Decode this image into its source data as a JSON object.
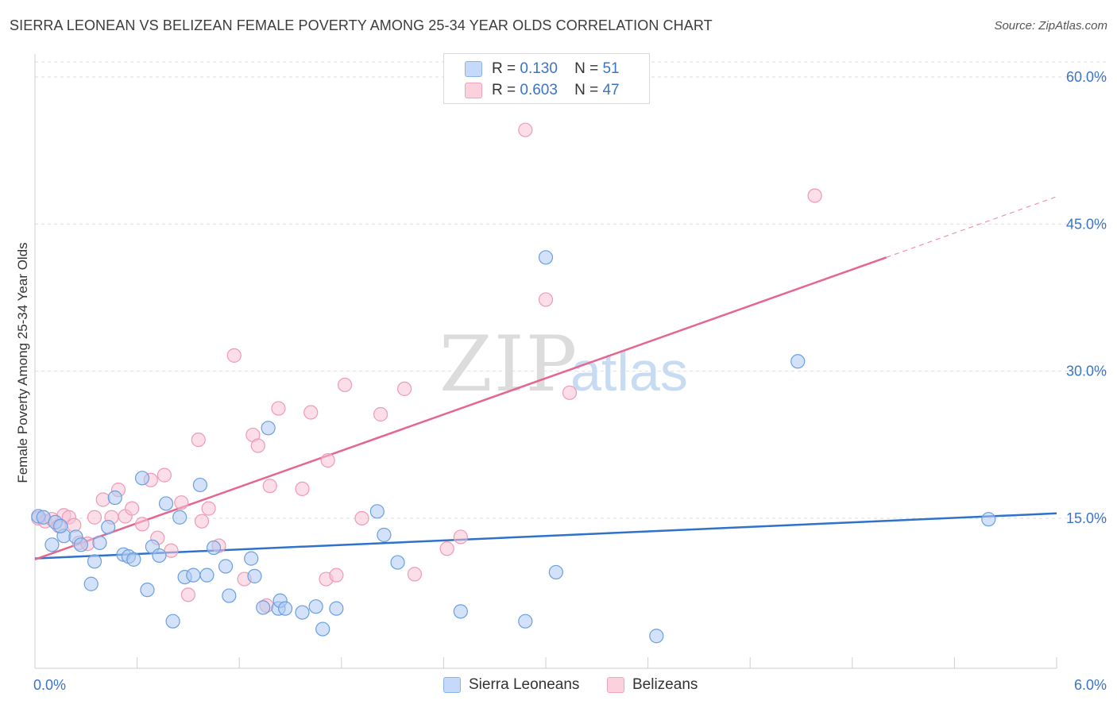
{
  "title": "SIERRA LEONEAN VS BELIZEAN FEMALE POVERTY AMONG 25-34 YEAR OLDS CORRELATION CHART",
  "source": "Source: ZipAtlas.com",
  "watermark": {
    "zip": "ZIP",
    "atlas": "atlas"
  },
  "legend": {
    "rows": [
      {
        "r_label": "R =",
        "r_value": "0.130",
        "n_label": "N =",
        "n_value": "51",
        "color": "#aecbf2"
      },
      {
        "r_label": "R =",
        "r_value": "0.603",
        "n_label": "N =",
        "n_value": "47",
        "color": "#f7b8cb"
      }
    ]
  },
  "bottom_legend": [
    {
      "label": "Sierra Leoneans",
      "color": "#aecbf2"
    },
    {
      "label": "Belizeans",
      "color": "#f7b8cb"
    }
  ],
  "chart_data": {
    "type": "scatter",
    "title": "SIERRA LEONEAN VS BELIZEAN FEMALE POVERTY AMONG 25-34 YEAR OLDS CORRELATION CHART",
    "xlabel": "",
    "ylabel": "Female Poverty Among 25-34 Year Olds",
    "xlim": [
      0,
      6
    ],
    "ylim": [
      0,
      62
    ],
    "x_tick_labels": [
      "0.0%",
      "6.0%"
    ],
    "y_ticks": [
      15,
      30,
      45,
      60
    ],
    "y_tick_labels": [
      "15.0%",
      "30.0%",
      "45.0%",
      "60.0%"
    ],
    "grid": true,
    "legend_position": "top-center",
    "colors": {
      "blue_fill": "#aecbf2",
      "blue_stroke": "#6a9fe0",
      "blue_line": "#2e72c9",
      "pink_fill": "#f7c3d3",
      "pink_stroke": "#ef9ab5",
      "pink_line": "#e5668f",
      "tick_label": "#3a74c9",
      "grid": "#dddddd"
    },
    "series": [
      {
        "name": "Sierra Leoneans",
        "color": "#aecbf2",
        "trend": {
          "x": [
            0,
            6
          ],
          "y": [
            10.9,
            15.5
          ]
        },
        "points": [
          [
            0.02,
            15.2
          ],
          [
            0.05,
            15.1
          ],
          [
            0.1,
            12.3
          ],
          [
            0.12,
            14.6
          ],
          [
            0.17,
            13.2
          ],
          [
            0.24,
            13.1
          ],
          [
            0.27,
            12.3
          ],
          [
            0.33,
            8.3
          ],
          [
            0.35,
            10.6
          ],
          [
            0.38,
            12.5
          ],
          [
            0.43,
            14.1
          ],
          [
            0.47,
            17.1
          ],
          [
            0.52,
            11.3
          ],
          [
            0.55,
            11.1
          ],
          [
            0.58,
            10.8
          ],
          [
            0.63,
            19.1
          ],
          [
            0.66,
            7.7
          ],
          [
            0.69,
            12.1
          ],
          [
            0.73,
            11.2
          ],
          [
            0.77,
            16.5
          ],
          [
            0.81,
            4.5
          ],
          [
            0.85,
            15.1
          ],
          [
            0.88,
            9.0
          ],
          [
            0.93,
            9.2
          ],
          [
            0.97,
            18.4
          ],
          [
            1.01,
            9.2
          ],
          [
            1.05,
            12.0
          ],
          [
            1.12,
            10.1
          ],
          [
            1.14,
            7.1
          ],
          [
            1.27,
            10.9
          ],
          [
            1.29,
            9.1
          ],
          [
            1.34,
            5.9
          ],
          [
            1.37,
            24.2
          ],
          [
            1.43,
            5.8
          ],
          [
            1.44,
            6.6
          ],
          [
            1.47,
            5.8
          ],
          [
            1.57,
            5.4
          ],
          [
            1.65,
            6.0
          ],
          [
            1.69,
            3.7
          ],
          [
            1.77,
            5.8
          ],
          [
            2.01,
            15.7
          ],
          [
            2.05,
            13.3
          ],
          [
            2.13,
            10.5
          ],
          [
            2.5,
            5.5
          ],
          [
            2.88,
            4.5
          ],
          [
            3.0,
            41.6
          ],
          [
            3.06,
            9.5
          ],
          [
            3.65,
            3.0
          ],
          [
            4.48,
            31.0
          ],
          [
            5.6,
            14.9
          ],
          [
            0.15,
            14.2
          ]
        ]
      },
      {
        "name": "Belizeans",
        "color": "#f7b8cb",
        "trend": {
          "x": [
            0,
            5.0
          ],
          "y": [
            10.8,
            41.6
          ]
        },
        "trend_dashed": {
          "x": [
            5.0,
            6.0
          ],
          "y": [
            41.6,
            47.8
          ]
        },
        "points": [
          [
            0.02,
            15.0
          ],
          [
            0.06,
            14.7
          ],
          [
            0.1,
            14.9
          ],
          [
            0.14,
            14.2
          ],
          [
            0.17,
            15.3
          ],
          [
            0.2,
            15.1
          ],
          [
            0.23,
            14.3
          ],
          [
            0.26,
            12.5
          ],
          [
            0.31,
            12.4
          ],
          [
            0.35,
            15.1
          ],
          [
            0.4,
            16.9
          ],
          [
            0.45,
            15.1
          ],
          [
            0.49,
            17.9
          ],
          [
            0.53,
            15.2
          ],
          [
            0.57,
            16.0
          ],
          [
            0.63,
            14.4
          ],
          [
            0.68,
            18.9
          ],
          [
            0.72,
            13.0
          ],
          [
            0.76,
            19.4
          ],
          [
            0.8,
            11.7
          ],
          [
            0.86,
            16.6
          ],
          [
            0.9,
            7.2
          ],
          [
            0.96,
            23.0
          ],
          [
            0.98,
            14.7
          ],
          [
            1.02,
            16.0
          ],
          [
            1.08,
            12.2
          ],
          [
            1.17,
            31.6
          ],
          [
            1.23,
            8.8
          ],
          [
            1.28,
            23.5
          ],
          [
            1.31,
            22.4
          ],
          [
            1.36,
            6.1
          ],
          [
            1.38,
            18.3
          ],
          [
            1.43,
            26.2
          ],
          [
            1.57,
            18.0
          ],
          [
            1.62,
            25.8
          ],
          [
            1.71,
            8.8
          ],
          [
            1.72,
            20.9
          ],
          [
            1.77,
            9.2
          ],
          [
            1.82,
            28.6
          ],
          [
            1.92,
            15.0
          ],
          [
            2.03,
            25.6
          ],
          [
            2.17,
            28.2
          ],
          [
            2.23,
            9.3
          ],
          [
            2.42,
            11.9
          ],
          [
            2.5,
            13.1
          ],
          [
            2.88,
            54.6
          ],
          [
            3.0,
            37.3
          ]
        ],
        "extra_points": [
          [
            3.14,
            27.8
          ],
          [
            4.58,
            47.9
          ]
        ]
      }
    ]
  }
}
